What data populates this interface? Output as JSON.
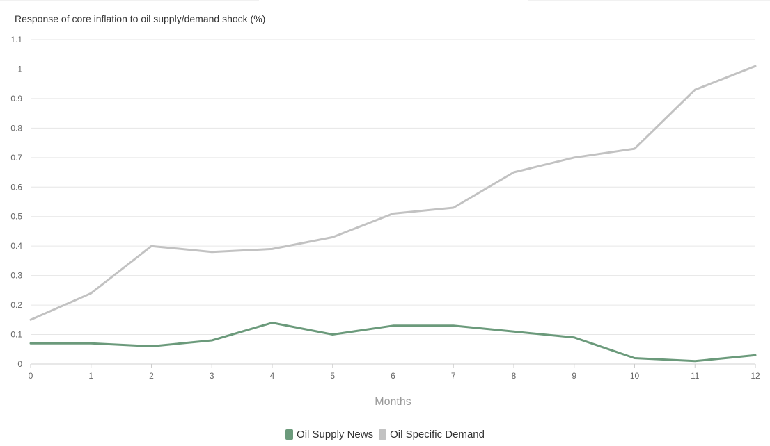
{
  "chart_data": {
    "type": "line",
    "title": "Response of core inflation to oil supply/demand shock (%)",
    "xlabel": "Months",
    "ylabel": "",
    "x": [
      0,
      1,
      2,
      3,
      4,
      5,
      6,
      7,
      8,
      9,
      10,
      11,
      12
    ],
    "xlim": [
      0,
      12
    ],
    "ylim": [
      0,
      1.1
    ],
    "yticks": [
      "0",
      "0.1",
      "0.2",
      "0.3",
      "0.4",
      "0.5",
      "0.6",
      "0.7",
      "0.8",
      "0.9",
      "1",
      "1.1"
    ],
    "ytick_values": [
      0,
      0.1,
      0.2,
      0.3,
      0.4,
      0.5,
      0.6,
      0.7,
      0.8,
      0.9,
      1.0,
      1.1
    ],
    "xticks": [
      "0",
      "1",
      "2",
      "3",
      "4",
      "5",
      "6",
      "7",
      "8",
      "9",
      "10",
      "11",
      "12"
    ],
    "grid": true,
    "legend_position": "bottom-center",
    "series": [
      {
        "name": "Oil Supply News",
        "color": "#6b9a7b",
        "values": [
          0.07,
          0.07,
          0.06,
          0.08,
          0.14,
          0.1,
          0.13,
          0.13,
          0.11,
          0.09,
          0.02,
          0.01,
          0.03
        ]
      },
      {
        "name": "Oil Specific Demand",
        "color": "#c2c2c2",
        "values": [
          0.15,
          0.24,
          0.4,
          0.38,
          0.39,
          0.43,
          0.51,
          0.53,
          0.65,
          0.7,
          0.73,
          0.93,
          1.01
        ]
      }
    ]
  }
}
